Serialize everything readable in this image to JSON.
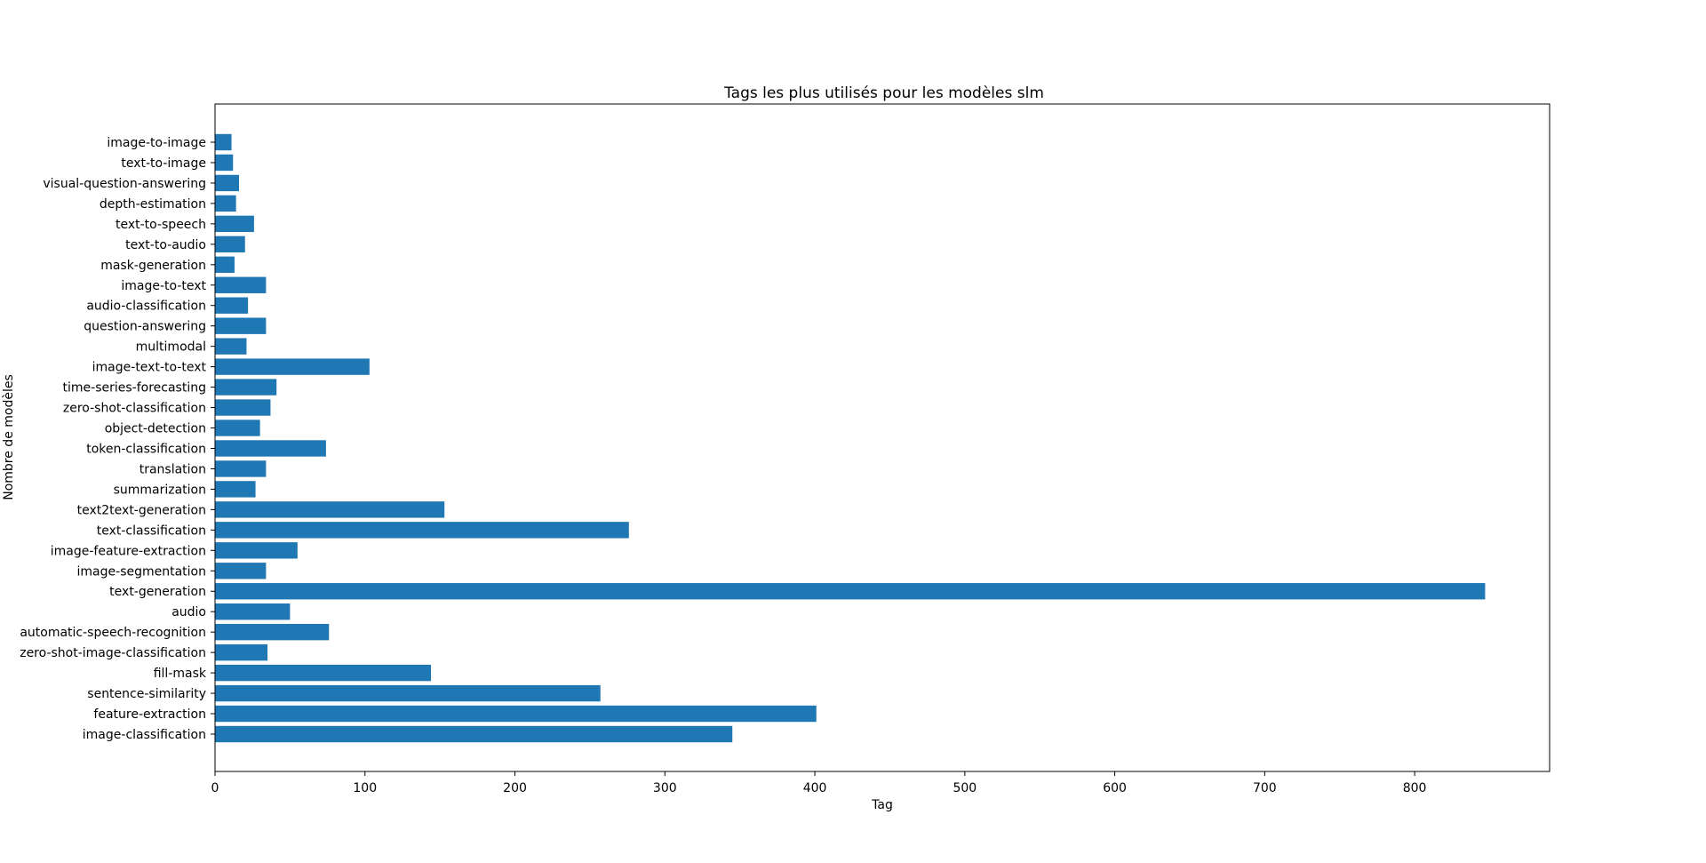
{
  "chart_data": {
    "type": "bar",
    "orientation": "horizontal",
    "title": "Tags les plus utilisés pour les modèles slm",
    "xlabel": "Tag",
    "ylabel": "Nombre de modèles",
    "xlim": [
      0,
      890
    ],
    "xticks": [
      0,
      100,
      200,
      300,
      400,
      500,
      600,
      700,
      800
    ],
    "grid": false,
    "bar_color": "#1f77b4",
    "categories": [
      "image-classification",
      "feature-extraction",
      "sentence-similarity",
      "fill-mask",
      "zero-shot-image-classification",
      "automatic-speech-recognition",
      "audio",
      "text-generation",
      "image-segmentation",
      "image-feature-extraction",
      "text-classification",
      "text2text-generation",
      "summarization",
      "translation",
      "token-classification",
      "object-detection",
      "zero-shot-classification",
      "time-series-forecasting",
      "image-text-to-text",
      "multimodal",
      "question-answering",
      "audio-classification",
      "image-to-text",
      "mask-generation",
      "text-to-audio",
      "text-to-speech",
      "depth-estimation",
      "visual-question-answering",
      "text-to-image",
      "image-to-image"
    ],
    "values": [
      345,
      401,
      257,
      144,
      35,
      76,
      50,
      847,
      34,
      55,
      276,
      153,
      27,
      34,
      74,
      30,
      37,
      41,
      103,
      21,
      34,
      22,
      34,
      13,
      20,
      26,
      14,
      16,
      12,
      11
    ]
  }
}
